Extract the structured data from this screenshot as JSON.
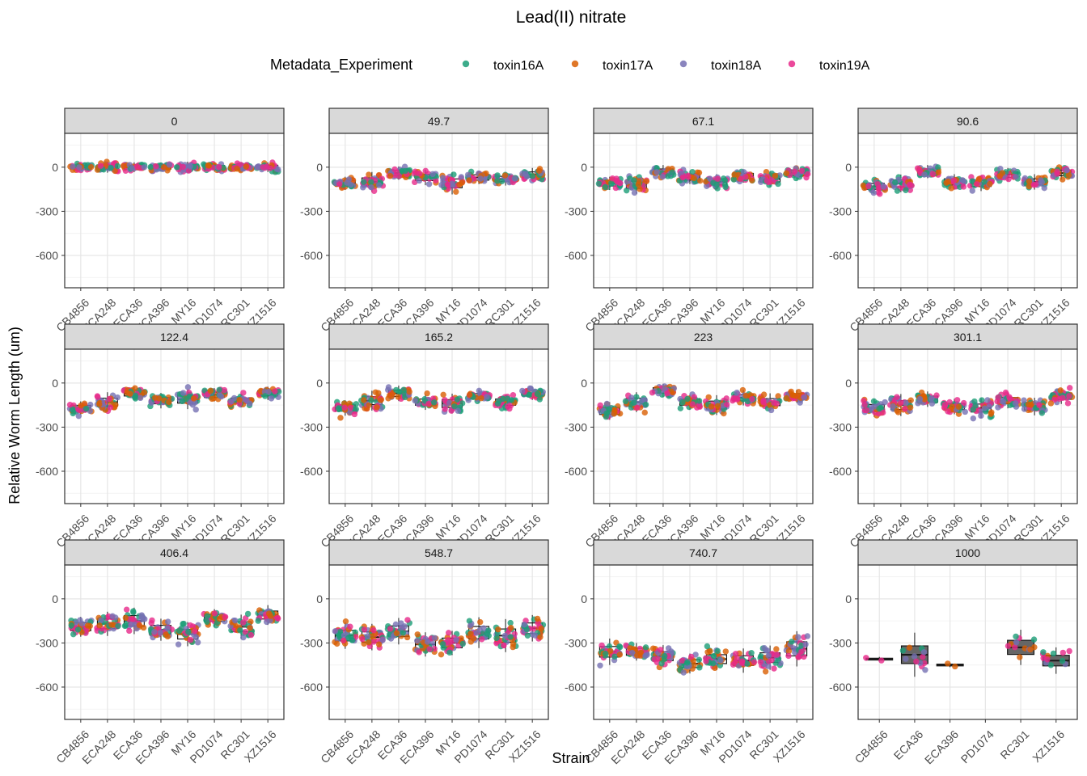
{
  "chart_data": {
    "type": "faceted-box-jitter",
    "title": "Lead(II) nitrate",
    "xlabel": "Strain",
    "ylabel": "Relative Worm Length (um)",
    "legend": {
      "title": "Metadata_Experiment",
      "position": "top",
      "items": [
        {
          "name": "toxin16A",
          "color": "#1b9e77"
        },
        {
          "name": "toxin17A",
          "color": "#d95f02"
        },
        {
          "name": "toxin18A",
          "color": "#7570b3"
        },
        {
          "name": "toxin19A",
          "color": "#e7298a"
        }
      ]
    },
    "categories": [
      "CB4856",
      "ECA248",
      "ECA36",
      "ECA396",
      "MY16",
      "PD1074",
      "RC301",
      "XZ1516"
    ],
    "ylim": [
      -820,
      230
    ],
    "yticks": [
      0,
      -300,
      -600
    ],
    "ytick_labels": [
      "0",
      "-300",
      "-600"
    ],
    "grid": true,
    "panels": [
      {
        "label": "0",
        "medians": [
          0,
          0,
          0,
          0,
          0,
          0,
          0,
          0
        ],
        "spreads": [
          20,
          25,
          22,
          20,
          25,
          20,
          22,
          22
        ]
      },
      {
        "label": "49.7",
        "medians": [
          -110,
          -100,
          -40,
          -70,
          -110,
          -70,
          -80,
          -50
        ],
        "spreads": [
          30,
          45,
          30,
          35,
          50,
          30,
          30,
          30
        ]
      },
      {
        "label": "67.1",
        "medians": [
          -110,
          -120,
          -30,
          -70,
          -100,
          -60,
          -80,
          -40
        ],
        "spreads": [
          30,
          40,
          30,
          30,
          35,
          30,
          35,
          30
        ]
      },
      {
        "label": "90.6",
        "medians": [
          -130,
          -110,
          -30,
          -100,
          -110,
          -50,
          -100,
          -40
        ],
        "spreads": [
          35,
          40,
          30,
          35,
          35,
          30,
          35,
          30
        ]
      },
      {
        "label": "122.4",
        "medians": [
          -170,
          -130,
          -70,
          -120,
          -110,
          -80,
          -120,
          -70
        ],
        "spreads": [
          30,
          45,
          30,
          35,
          45,
          30,
          30,
          30
        ]
      },
      {
        "label": "165.2",
        "medians": [
          -170,
          -120,
          -70,
          -130,
          -140,
          -90,
          -130,
          -70
        ],
        "spreads": [
          35,
          45,
          35,
          35,
          45,
          30,
          35,
          30
        ]
      },
      {
        "label": "223",
        "medians": [
          -190,
          -130,
          -50,
          -130,
          -150,
          -100,
          -130,
          -90
        ],
        "spreads": [
          40,
          45,
          30,
          35,
          45,
          35,
          40,
          30
        ]
      },
      {
        "label": "301.1",
        "medians": [
          -170,
          -150,
          -110,
          -160,
          -170,
          -120,
          -160,
          -90
        ],
        "spreads": [
          40,
          50,
          35,
          35,
          45,
          35,
          40,
          35
        ]
      },
      {
        "label": "406.4",
        "medians": [
          -190,
          -170,
          -150,
          -210,
          -240,
          -130,
          -190,
          -110
        ],
        "spreads": [
          45,
          55,
          60,
          50,
          55,
          40,
          55,
          45
        ]
      },
      {
        "label": "548.7",
        "medians": [
          -250,
          -260,
          -220,
          -310,
          -300,
          -230,
          -250,
          -200
        ],
        "spreads": [
          60,
          60,
          60,
          55,
          55,
          70,
          75,
          60
        ]
      },
      {
        "label": "740.7",
        "medians": [
          -360,
          -360,
          -390,
          -440,
          -410,
          -420,
          -400,
          -340
        ],
        "spreads": [
          60,
          40,
          50,
          45,
          50,
          55,
          55,
          80
        ]
      },
      {
        "label": "1000",
        "medians": [
          -410,
          -380,
          -450,
          null,
          -330,
          -420,
          null,
          null
        ],
        "strains": [
          "CB4856",
          "ECA36",
          "ECA396",
          "PD1074",
          "RC301",
          "XZ1516"
        ],
        "present": [
          true,
          true,
          true,
          false,
          true,
          true
        ],
        "spreads": [
          10,
          100,
          10,
          0,
          80,
          60
        ]
      }
    ]
  }
}
